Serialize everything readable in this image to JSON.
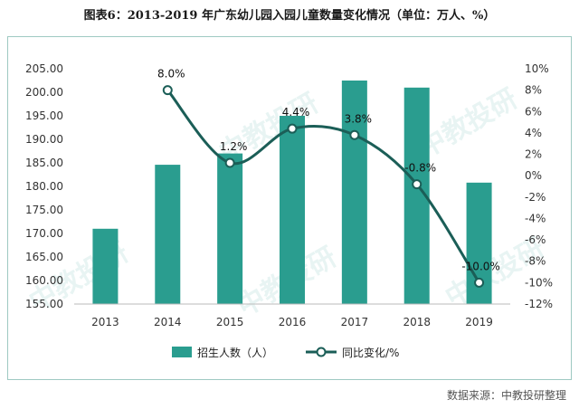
{
  "title": "图表6：2013-2019 年广东幼儿园入园儿童数量变化情况（单位：万人、%）",
  "source": "数据来源：中教投研整理",
  "watermark": "中教投研",
  "colors": {
    "bar": "#2a9d8f",
    "line": "#1b5e57",
    "panel_border": "#9ec9c2"
  },
  "chart_data": {
    "type": "bar+line",
    "categories": [
      "2013",
      "2014",
      "2015",
      "2016",
      "2017",
      "2018",
      "2019"
    ],
    "series": [
      {
        "name": "招生人数（人）",
        "type": "bar",
        "axis": "left",
        "values": [
          171.0,
          184.6,
          187.0,
          195.0,
          202.5,
          201.0,
          180.8
        ]
      },
      {
        "name": "同比变化/%",
        "type": "line",
        "axis": "right",
        "values": [
          null,
          8.0,
          1.2,
          4.4,
          3.8,
          -0.8,
          -10.0
        ],
        "labels": [
          "",
          "8.0%",
          "1.2%",
          "4.4%",
          "3.8%",
          "-0.8%",
          "-10.0%"
        ]
      }
    ],
    "y_left": {
      "min": 155,
      "max": 205,
      "step": 5,
      "ticks": [
        "155.00",
        "160.00",
        "165.00",
        "170.00",
        "175.00",
        "180.00",
        "185.00",
        "190.00",
        "195.00",
        "200.00",
        "205.00"
      ]
    },
    "y_right": {
      "min": -12,
      "max": 10,
      "step": 2,
      "ticks": [
        "-12%",
        "-10%",
        "-8%",
        "-6%",
        "-4%",
        "-2%",
        "0%",
        "2%",
        "4%",
        "6%",
        "8%",
        "10%"
      ]
    },
    "legend_position": "bottom",
    "grid": false
  }
}
